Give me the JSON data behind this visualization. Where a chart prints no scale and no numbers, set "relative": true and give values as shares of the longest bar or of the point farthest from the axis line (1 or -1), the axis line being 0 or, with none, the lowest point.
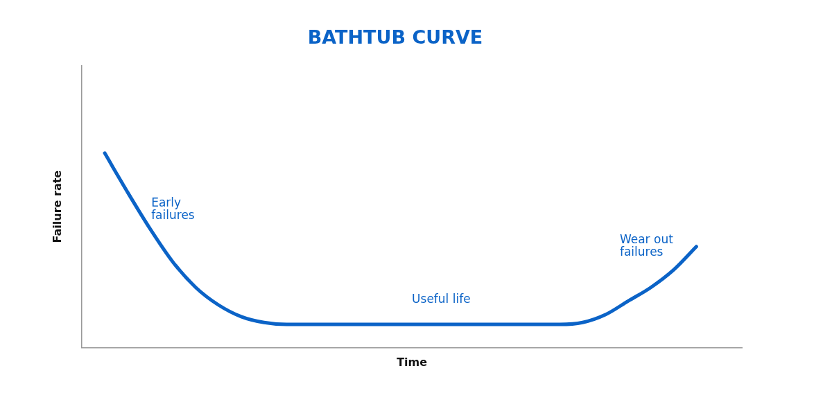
{
  "chart_data": {
    "type": "line",
    "title": "BATHTUB CURVE",
    "xlabel": "Time",
    "ylabel": "Failure rate",
    "relative": true,
    "marker": "none",
    "line_style": "solid",
    "grid": false,
    "legend": false,
    "tick_labels": false,
    "categories": [
      null,
      null,
      null,
      null,
      null,
      null,
      null,
      null,
      null,
      null,
      null,
      null,
      null,
      null,
      null,
      null,
      null,
      null,
      null,
      null,
      null,
      null,
      null,
      null,
      null,
      null,
      null,
      null,
      null,
      null
    ],
    "series": [
      {
        "color": "#0b63c7",
        "values": [
          null,
          1,
          0.8,
          0.61,
          0.44,
          0.31,
          0.22,
          0.16,
          0.13,
          0.12,
          0.12,
          0.12,
          0.12,
          0.12,
          0.12,
          0.12,
          0.12,
          0.12,
          0.12,
          0.12,
          0.12,
          0.12,
          0.13,
          0.17,
          0.24,
          0.31,
          0.4,
          0.52,
          null,
          null
        ]
      }
    ],
    "annotations": [
      "Early failures",
      "Useful life",
      "Wear out failures"
    ]
  }
}
